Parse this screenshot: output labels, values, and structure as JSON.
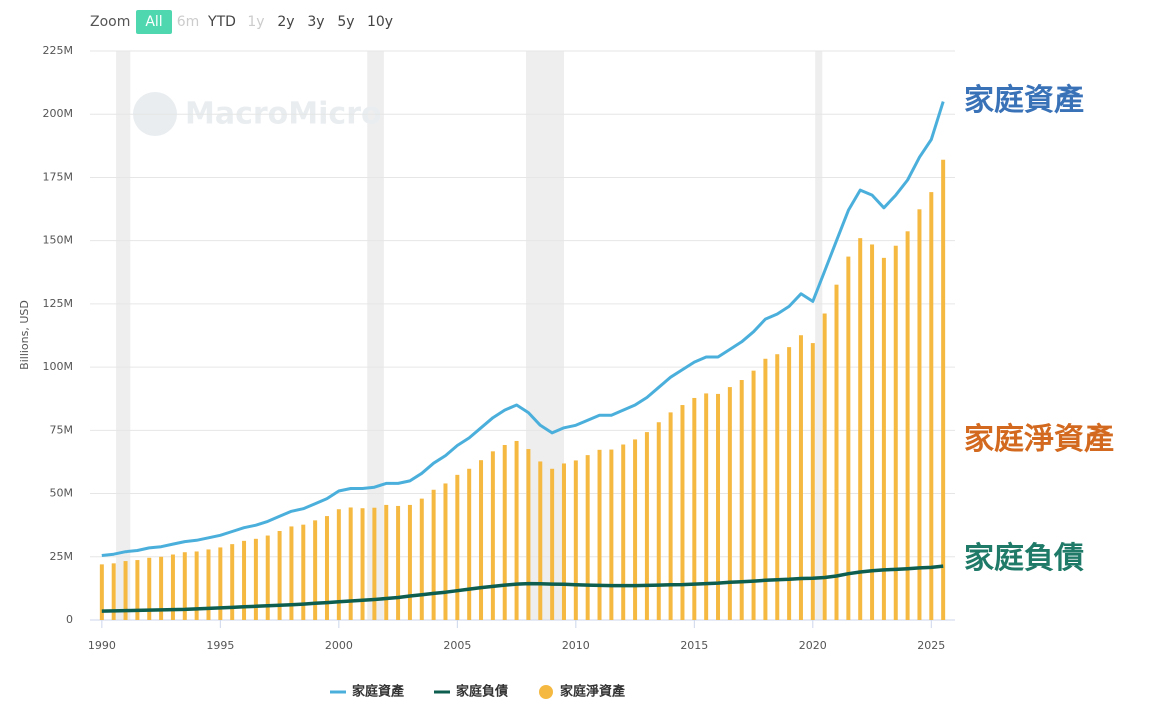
{
  "zoom": {
    "label": "Zoom",
    "buttons": [
      {
        "label": "All",
        "selected": true,
        "enabled": true
      },
      {
        "label": "6m",
        "selected": false,
        "enabled": false
      },
      {
        "label": "YTD",
        "selected": false,
        "enabled": true
      },
      {
        "label": "1y",
        "selected": false,
        "enabled": false
      },
      {
        "label": "2y",
        "selected": false,
        "enabled": true
      },
      {
        "label": "3y",
        "selected": false,
        "enabled": true
      },
      {
        "label": "5y",
        "selected": false,
        "enabled": true
      },
      {
        "label": "10y",
        "selected": false,
        "enabled": true
      }
    ]
  },
  "watermark": "MacroMicro",
  "chart_data": {
    "type": "combo",
    "y_label": "Billions, USD",
    "xlim": [
      1989.5,
      2026
    ],
    "xticks": [
      1990,
      1995,
      2000,
      2005,
      2010,
      2015,
      2020,
      2025
    ],
    "ylim": [
      0,
      225
    ],
    "yticks": [
      0,
      {
        "value": 25,
        "label": "25M"
      },
      {
        "value": 50,
        "label": "50M"
      },
      {
        "value": 75,
        "label": "75M"
      },
      {
        "value": 100,
        "label": "100M"
      },
      {
        "value": 125,
        "label": "125M"
      },
      {
        "value": 150,
        "label": "150M"
      },
      {
        "value": 175,
        "label": "175M"
      },
      {
        "value": 200,
        "label": "200M"
      },
      {
        "value": 225,
        "label": "225M"
      }
    ],
    "grid": true,
    "recessions": [
      [
        1990.6,
        1991.2
      ],
      [
        2001.2,
        2001.9
      ],
      [
        2007.9,
        2009.5
      ],
      [
        2020.1,
        2020.4
      ]
    ],
    "x": [
      1990,
      1990.5,
      1991,
      1991.5,
      1992,
      1992.5,
      1993,
      1993.5,
      1994,
      1994.5,
      1995,
      1995.5,
      1996,
      1996.5,
      1997,
      1997.5,
      1998,
      1998.5,
      1999,
      1999.5,
      2000,
      2000.5,
      2001,
      2001.5,
      2002,
      2002.5,
      2003,
      2003.5,
      2004,
      2004.5,
      2005,
      2005.5,
      2006,
      2006.5,
      2007,
      2007.5,
      2008,
      2008.5,
      2009,
      2009.5,
      2010,
      2010.5,
      2011,
      2011.5,
      2012,
      2012.5,
      2013,
      2013.5,
      2014,
      2014.5,
      2015,
      2015.5,
      2016,
      2016.5,
      2017,
      2017.5,
      2018,
      2018.5,
      2019,
      2019.5,
      2020,
      2020.5,
      2021,
      2021.5,
      2022,
      2022.5,
      2023,
      2023.5,
      2024,
      2024.5,
      2025,
      2025.5
    ],
    "series": [
      {
        "name": "家庭資產",
        "type": "line",
        "color": "#4bafdc",
        "width": 3,
        "values": [
          25.5,
          26,
          27,
          27.5,
          28.5,
          29,
          30,
          31,
          31.5,
          32.5,
          33.5,
          35,
          36.5,
          37.5,
          39,
          41,
          43,
          44,
          46,
          48,
          51,
          52,
          52,
          52.5,
          54,
          54,
          55,
          58,
          62,
          65,
          69,
          72,
          76,
          80,
          83,
          85,
          82,
          77,
          74,
          76,
          77,
          79,
          81,
          81,
          83,
          85,
          88,
          92,
          96,
          99,
          102,
          104,
          104,
          107,
          110,
          114,
          119,
          121,
          124,
          129,
          126,
          138,
          150,
          162,
          170,
          168,
          163,
          168,
          174,
          183,
          190,
          205
        ]
      },
      {
        "name": "家庭負債",
        "type": "line",
        "color": "#0e5e4f",
        "width": 3.5,
        "values": [
          3.5,
          3.6,
          3.7,
          3.8,
          3.9,
          4.0,
          4.1,
          4.2,
          4.4,
          4.6,
          4.8,
          5.0,
          5.2,
          5.4,
          5.6,
          5.8,
          6.0,
          6.3,
          6.6,
          6.9,
          7.2,
          7.5,
          7.8,
          8.1,
          8.5,
          8.9,
          9.5,
          10.0,
          10.5,
          11.0,
          11.6,
          12.2,
          12.8,
          13.3,
          13.8,
          14.2,
          14.4,
          14.3,
          14.2,
          14.1,
          13.9,
          13.8,
          13.7,
          13.6,
          13.6,
          13.6,
          13.7,
          13.8,
          13.9,
          14.0,
          14.2,
          14.4,
          14.6,
          14.9,
          15.1,
          15.4,
          15.7,
          15.9,
          16.1,
          16.4,
          16.5,
          16.8,
          17.4,
          18.3,
          19.0,
          19.5,
          19.8,
          20.0,
          20.3,
          20.6,
          20.8,
          21.3
        ]
      },
      {
        "name": "家庭淨資產",
        "type": "bar",
        "color": "#f5b942",
        "values": [
          22,
          22.4,
          23.3,
          23.7,
          24.6,
          25,
          25.9,
          26.8,
          27.1,
          27.9,
          28.7,
          30,
          31.3,
          32.1,
          33.4,
          35.2,
          37,
          37.7,
          39.4,
          41.1,
          43.8,
          44.5,
          44.2,
          44.4,
          45.5,
          45.1,
          45.5,
          48,
          51.5,
          54,
          57.4,
          59.8,
          63.2,
          66.7,
          69.2,
          70.8,
          67.6,
          62.7,
          59.8,
          61.9,
          63.1,
          65.2,
          67.3,
          67.4,
          69.4,
          71.4,
          74.3,
          78.2,
          82.1,
          85,
          87.8,
          89.6,
          89.4,
          92.1,
          94.9,
          98.6,
          103.3,
          105.1,
          107.9,
          112.6,
          109.5,
          121.2,
          132.6,
          143.7,
          151,
          148.5,
          143.2,
          148,
          153.7,
          162.4,
          169.2,
          182
        ]
      }
    ],
    "annotations": [
      {
        "text": "家庭資產",
        "color": "#3a72b8",
        "y": 205
      },
      {
        "text": "家庭淨資產",
        "color": "#d2691e",
        "y": 71
      },
      {
        "text": "家庭負債",
        "color": "#1f7a68",
        "y": 24
      }
    ]
  }
}
